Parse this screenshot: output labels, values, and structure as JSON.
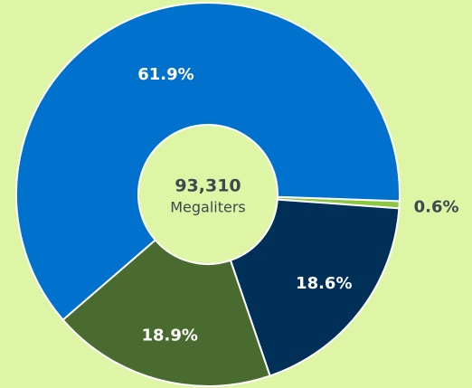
{
  "chart_data": {
    "type": "donut",
    "values": [
      0.6,
      18.6,
      18.9,
      61.9
    ],
    "value_labels": [
      "0.6%",
      "18.6%",
      "18.9%",
      "61.9%"
    ],
    "colors": [
      "#8dc63f",
      "#003057",
      "#4a6b2f",
      "#0072ce"
    ],
    "center_text": "93,310",
    "center_subtext": "Megaliters"
  }
}
